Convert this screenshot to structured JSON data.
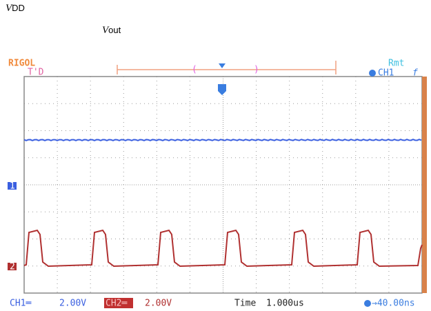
{
  "labels": {
    "vdd": {
      "symbol": "V",
      "suffix": "DD"
    },
    "vout": {
      "symbol": "V",
      "suffix": "out"
    }
  },
  "scope": {
    "brand": "RIGOL",
    "trigger_status": "T'D",
    "remote": "Rmt",
    "trigger_channel": "CH1",
    "trigger_edge": "f",
    "ch1_marker": "1",
    "ch2_marker": "2",
    "footer": {
      "ch1_label": "CH1═",
      "ch1_scale": "2.00V",
      "ch2_label": "CH2═",
      "ch2_scale": "2.00V",
      "time_label": "Time",
      "time_scale": "1.000us",
      "offset": "→40.00ns"
    }
  }
}
